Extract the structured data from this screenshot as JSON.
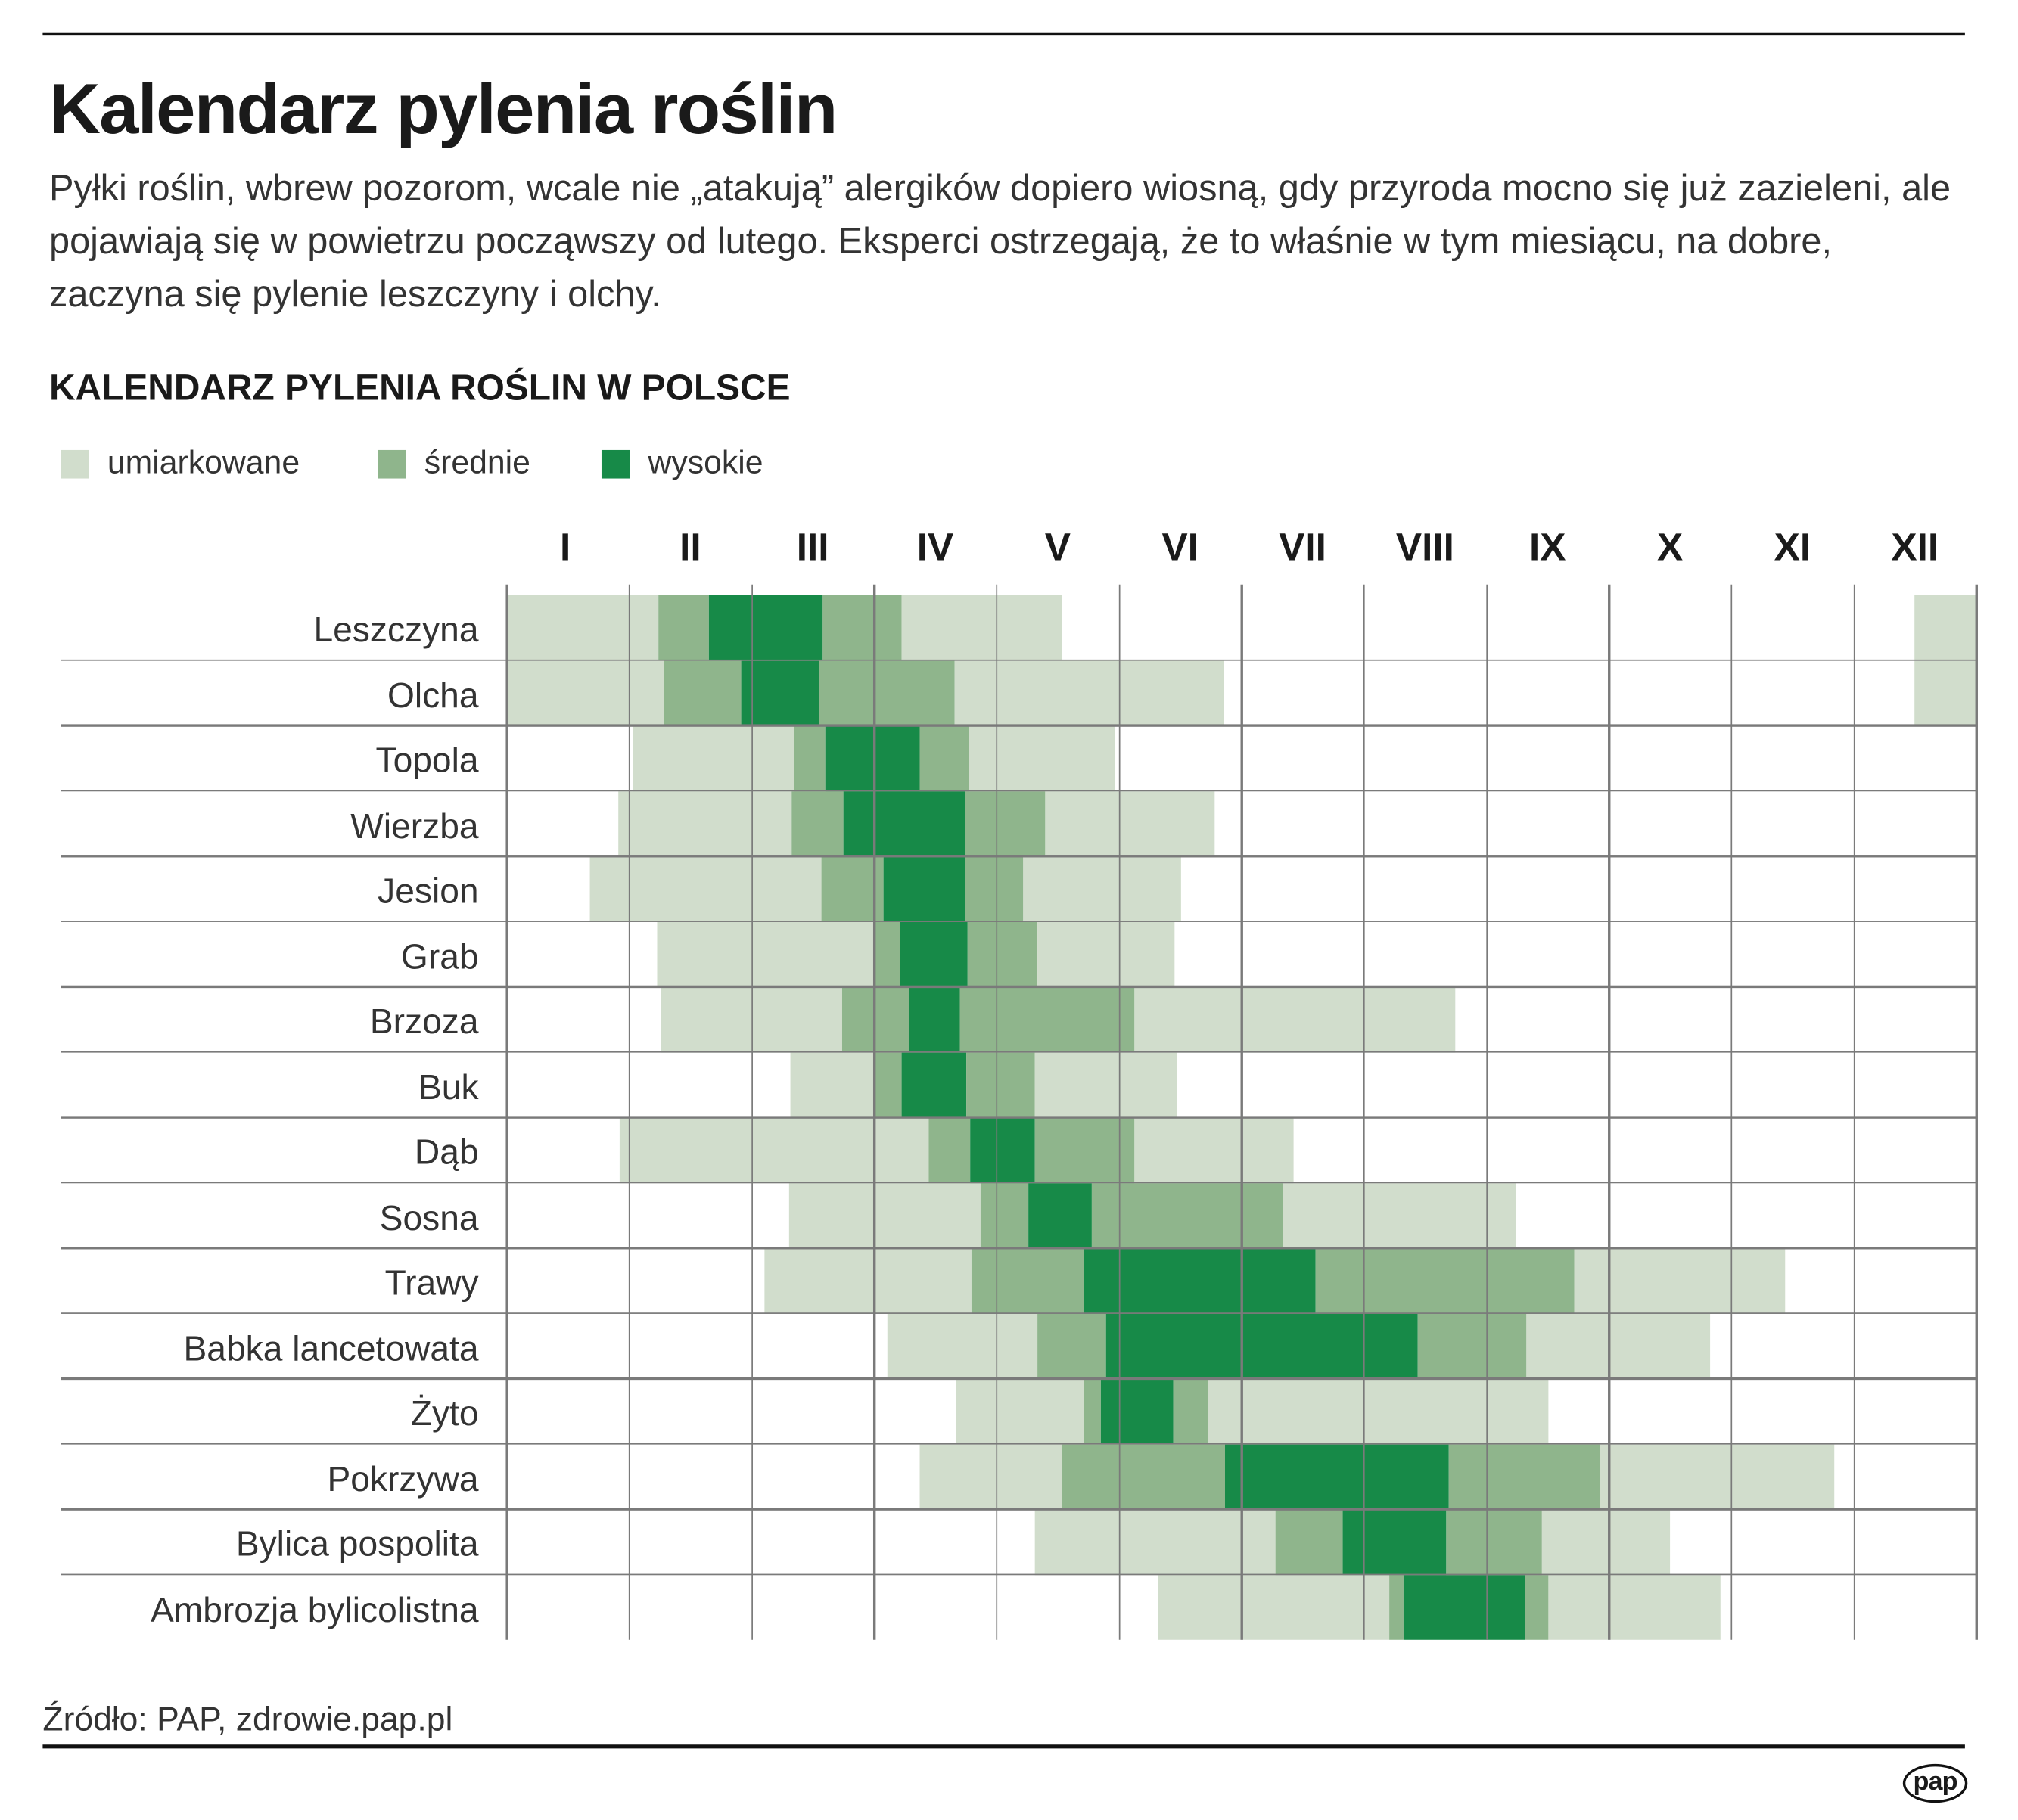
{
  "title": "Kalendarz pylenia roślin",
  "lead": "Pyłki roślin, wbrew pozorom, wcale nie „atakują” alergików dopiero wiosną, gdy przyroda mocno się już zazieleni, ale pojawiają się w powietrzu począwszy od lutego. Eksperci ostrzegają, że to właśnie w tym miesiącu, na dobre, zaczyna się pylenie leszczyny i olchy.",
  "source": "Źródło: PAP, zdrowie.pap.pl",
  "logo": "pap",
  "chart_data": {
    "type": "heatmap",
    "title": "KALENDARZ PYLENIA ROŚLIN W POLSCE",
    "legend": [
      {
        "key": "l",
        "label": "umiarkowane",
        "color": "#d1ddcc"
      },
      {
        "key": "m",
        "label": "średnie",
        "color": "#8fb58c"
      },
      {
        "key": "h",
        "label": "wysokie",
        "color": "#178a48"
      }
    ],
    "months": [
      "I",
      "II",
      "III",
      "IV",
      "V",
      "VI",
      "VII",
      "VIII",
      "IX",
      "X",
      "XI",
      "XII"
    ],
    "x_range_months": [
      0,
      12
    ],
    "grid": true,
    "plants": [
      {
        "name": "Leszczyna",
        "segments": [
          [
            0,
            1.24,
            "l"
          ],
          [
            1.24,
            1.65,
            "m"
          ],
          [
            1.65,
            2.58,
            "h"
          ],
          [
            2.58,
            3.22,
            "m"
          ],
          [
            3.22,
            4.53,
            "l"
          ],
          [
            11.49,
            12,
            "l"
          ]
        ]
      },
      {
        "name": "Olcha",
        "segments": [
          [
            0,
            1.28,
            "l"
          ],
          [
            1.28,
            1.91,
            "m"
          ],
          [
            1.91,
            2.55,
            "h"
          ],
          [
            2.55,
            3.65,
            "m"
          ],
          [
            3.65,
            5.85,
            "l"
          ],
          [
            11.49,
            12,
            "l"
          ]
        ]
      },
      {
        "name": "Topola",
        "segments": [
          [
            1.02,
            2.35,
            "l"
          ],
          [
            2.35,
            2.6,
            "m"
          ],
          [
            2.6,
            3.37,
            "h"
          ],
          [
            3.37,
            3.77,
            "m"
          ],
          [
            3.77,
            4.96,
            "l"
          ]
        ]
      },
      {
        "name": "Wierzba",
        "segments": [
          [
            0.91,
            2.32,
            "l"
          ],
          [
            2.32,
            2.75,
            "m"
          ],
          [
            2.75,
            3.74,
            "h"
          ],
          [
            3.74,
            4.39,
            "m"
          ],
          [
            4.39,
            5.78,
            "l"
          ]
        ]
      },
      {
        "name": "Jesion",
        "segments": [
          [
            0.68,
            2.57,
            "l"
          ],
          [
            2.57,
            3.07,
            "m"
          ],
          [
            3.07,
            3.74,
            "h"
          ],
          [
            3.74,
            4.21,
            "m"
          ],
          [
            4.21,
            5.5,
            "l"
          ]
        ]
      },
      {
        "name": "Grab",
        "segments": [
          [
            1.23,
            2.99,
            "l"
          ],
          [
            2.99,
            3.21,
            "m"
          ],
          [
            3.21,
            3.76,
            "h"
          ],
          [
            3.76,
            4.33,
            "m"
          ],
          [
            4.33,
            5.45,
            "l"
          ]
        ]
      },
      {
        "name": "Brzoza",
        "segments": [
          [
            1.26,
            2.74,
            "l"
          ],
          [
            2.74,
            3.29,
            "m"
          ],
          [
            3.29,
            3.7,
            "h"
          ],
          [
            3.7,
            5.12,
            "m"
          ],
          [
            5.12,
            7.74,
            "l"
          ]
        ]
      },
      {
        "name": "Buk",
        "segments": [
          [
            2.31,
            3.0,
            "l"
          ],
          [
            3.0,
            3.22,
            "m"
          ],
          [
            3.22,
            3.75,
            "h"
          ],
          [
            3.75,
            4.31,
            "m"
          ],
          [
            4.31,
            5.47,
            "l"
          ]
        ]
      },
      {
        "name": "Dąb",
        "segments": [
          [
            0.92,
            3.44,
            "l"
          ],
          [
            3.44,
            3.78,
            "m"
          ],
          [
            3.78,
            4.31,
            "h"
          ],
          [
            4.31,
            5.12,
            "m"
          ],
          [
            5.12,
            6.42,
            "l"
          ]
        ]
      },
      {
        "name": "Sosna",
        "segments": [
          [
            2.3,
            3.87,
            "l"
          ],
          [
            3.87,
            4.26,
            "m"
          ],
          [
            4.26,
            4.77,
            "h"
          ],
          [
            4.77,
            6.34,
            "m"
          ],
          [
            6.34,
            8.24,
            "l"
          ]
        ]
      },
      {
        "name": "Trawy",
        "segments": [
          [
            2.1,
            3.79,
            "l"
          ],
          [
            3.79,
            4.71,
            "m"
          ],
          [
            4.71,
            6.6,
            "h"
          ],
          [
            6.6,
            8.71,
            "m"
          ],
          [
            8.71,
            10.44,
            "l"
          ]
        ]
      },
      {
        "name": "Babka lancetowata",
        "segments": [
          [
            3.11,
            4.33,
            "l"
          ],
          [
            4.33,
            4.89,
            "m"
          ],
          [
            4.89,
            7.44,
            "h"
          ],
          [
            7.44,
            8.32,
            "m"
          ],
          [
            8.32,
            9.82,
            "l"
          ]
        ]
      },
      {
        "name": "Żyto",
        "segments": [
          [
            3.67,
            4.71,
            "l"
          ],
          [
            4.71,
            4.85,
            "m"
          ],
          [
            4.85,
            5.44,
            "h"
          ],
          [
            5.44,
            5.73,
            "m"
          ],
          [
            5.73,
            8.5,
            "l"
          ]
        ]
      },
      {
        "name": "Pokrzywa",
        "segments": [
          [
            3.37,
            4.53,
            "l"
          ],
          [
            4.53,
            5.86,
            "m"
          ],
          [
            5.86,
            7.69,
            "h"
          ],
          [
            7.69,
            8.93,
            "m"
          ],
          [
            8.93,
            10.84,
            "l"
          ]
        ]
      },
      {
        "name": "Bylica pospolita",
        "segments": [
          [
            4.31,
            6.27,
            "l"
          ],
          [
            6.27,
            6.82,
            "m"
          ],
          [
            6.82,
            7.67,
            "h"
          ],
          [
            7.67,
            8.45,
            "m"
          ],
          [
            8.45,
            9.5,
            "l"
          ]
        ]
      },
      {
        "name": "Ambrozja bylicolistna",
        "segments": [
          [
            5.31,
            7.2,
            "l"
          ],
          [
            7.2,
            7.32,
            "m"
          ],
          [
            7.32,
            8.31,
            "h"
          ],
          [
            8.31,
            8.5,
            "m"
          ],
          [
            8.5,
            9.91,
            "l"
          ]
        ]
      }
    ]
  }
}
